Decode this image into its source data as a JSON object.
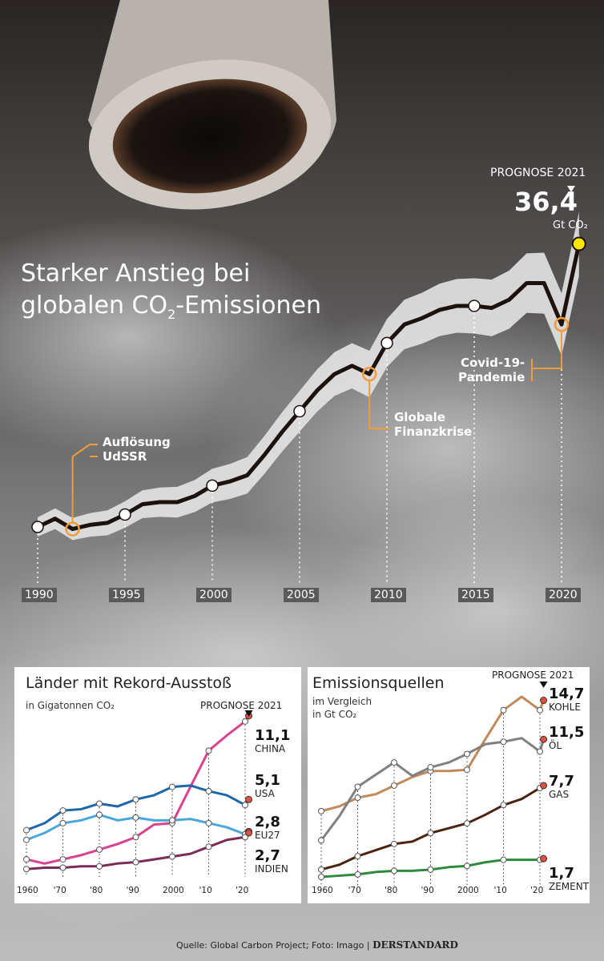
{
  "main": {
    "title_line1": "Starker Anstieg bei",
    "title_line2_pre": "globalen CO",
    "title_line2_sub": "2",
    "title_line2_post": "-Emissionen",
    "prognose_label": "PROGNOSE 2021",
    "prognose_value": "36,4",
    "prognose_unit": "Gt CO₂",
    "annotations": {
      "udssr": [
        "Auflösung",
        "UdSSR"
      ],
      "finanzkrise": [
        "Globale",
        "Finanzkrise"
      ],
      "covid": [
        "Covid-19-",
        "Pandemie"
      ]
    }
  },
  "chart_data": [
    {
      "type": "line",
      "title": "Starker Anstieg bei globalen CO2-Emissionen",
      "x_ticks": [
        "1990",
        "1995",
        "2000",
        "2005",
        "2010",
        "2015",
        "2020"
      ],
      "series": [
        {
          "x": [
            1990,
            1991,
            1992,
            1993,
            1994,
            1995,
            1996,
            1997,
            1998,
            1999,
            2000,
            2001,
            2002,
            2003,
            2004,
            2005,
            2006,
            2007,
            2008,
            2009,
            2010,
            2011,
            2012,
            2013,
            2014,
            2015,
            2016,
            2017,
            2018,
            2019,
            2020,
            2021
          ],
          "values": [
            22.7,
            23.1,
            22.6,
            22.8,
            22.9,
            23.3,
            23.8,
            23.9,
            23.9,
            24.2,
            24.7,
            24.9,
            25.2,
            26.2,
            27.3,
            28.3,
            29.3,
            30.1,
            30.5,
            30.1,
            31.6,
            32.5,
            32.8,
            33.2,
            33.4,
            33.4,
            33.3,
            33.7,
            34.5,
            34.5,
            32.5,
            36.4
          ]
        }
      ],
      "highlight_points": [
        1990,
        1995,
        2000,
        2005,
        2010,
        2015
      ],
      "annotated_points": [
        1992,
        2009,
        2020
      ],
      "prognose_point": 2021,
      "ylim": [
        21.5,
        37.5
      ],
      "colors": {
        "line": "#1c120d",
        "band": "#e4e4e4",
        "marker_highlight": "#ffffff",
        "marker_annot": "#f29b3a",
        "prognose": "#ffe600"
      }
    },
    {
      "type": "line",
      "title": "Länder mit Rekord-Ausstoß",
      "subtitle": "in Gigatonnen CO₂",
      "x_ticks": [
        "1960",
        "'70",
        "'80",
        "'90",
        "2000",
        "'10",
        "'20"
      ],
      "x": [
        1960,
        1965,
        1970,
        1975,
        1980,
        1985,
        1990,
        1995,
        2000,
        2005,
        2010,
        2015,
        2020,
        2021
      ],
      "series": [
        {
          "name": "CHINA",
          "color": "#d9428e",
          "values": [
            0.8,
            0.5,
            0.8,
            1.1,
            1.5,
            1.9,
            2.4,
            3.3,
            3.4,
            6.0,
            8.6,
            9.7,
            10.7,
            11.1
          ]
        },
        {
          "name": "USA",
          "color": "#1e67a8",
          "values": [
            2.9,
            3.4,
            4.3,
            4.4,
            4.8,
            4.6,
            5.1,
            5.4,
            6.0,
            6.1,
            5.7,
            5.4,
            4.7,
            5.1
          ]
        },
        {
          "name": "EU27",
          "color": "#4ba6da",
          "values": [
            2.2,
            2.7,
            3.4,
            3.6,
            4.0,
            3.6,
            3.8,
            3.6,
            3.6,
            3.7,
            3.4,
            3.1,
            2.6,
            2.8
          ]
        },
        {
          "name": "INDIEN",
          "color": "#7a2c57",
          "values": [
            0.1,
            0.2,
            0.2,
            0.3,
            0.3,
            0.5,
            0.6,
            0.8,
            1.0,
            1.2,
            1.7,
            2.2,
            2.4,
            2.7
          ]
        }
      ],
      "end_labels": [
        {
          "name": "CHINA",
          "value": "11,1"
        },
        {
          "name": "USA",
          "value": "5,1"
        },
        {
          "name": "EU27",
          "value": "2,8"
        },
        {
          "name": "INDIEN",
          "value": "2,7"
        }
      ],
      "prognose_label": "PROGNOSE 2021",
      "ylim": [
        0,
        12
      ]
    },
    {
      "type": "line",
      "title": "Emissionsquellen",
      "subtitle_line1": "im Vergleich",
      "subtitle_line2": "in Gt CO₂",
      "x_ticks": [
        "1960",
        "'70",
        "'80",
        "'90",
        "2000",
        "'10",
        "'20"
      ],
      "x": [
        1960,
        1965,
        1970,
        1975,
        1980,
        1985,
        1990,
        1995,
        2000,
        2005,
        2010,
        2015,
        2020,
        2021
      ],
      "series": [
        {
          "name": "KOHLE",
          "color": "#c08a5a",
          "values": [
            5.6,
            6.0,
            6.7,
            7.0,
            7.7,
            8.4,
            8.9,
            8.9,
            9.0,
            11.5,
            13.9,
            15.0,
            13.9,
            14.7
          ]
        },
        {
          "name": "ÖL",
          "color": "#808080",
          "values": [
            3.2,
            5.2,
            7.6,
            8.6,
            9.6,
            8.5,
            9.2,
            9.6,
            10.3,
            11.1,
            11.3,
            11.6,
            10.5,
            11.5
          ]
        },
        {
          "name": "GAS",
          "color": "#4a2410",
          "values": [
            0.8,
            1.2,
            1.9,
            2.4,
            2.9,
            3.1,
            3.8,
            4.2,
            4.6,
            5.3,
            6.1,
            6.6,
            7.5,
            7.7
          ]
        },
        {
          "name": "ZEMENT",
          "color": "#2e8b3c",
          "values": [
            0.2,
            0.3,
            0.4,
            0.6,
            0.7,
            0.7,
            0.8,
            1.0,
            1.1,
            1.4,
            1.6,
            1.6,
            1.6,
            1.7
          ]
        }
      ],
      "end_labels": [
        {
          "name": "KOHLE",
          "value": "14,7"
        },
        {
          "name": "ÖL",
          "value": "11,5"
        },
        {
          "name": "GAS",
          "value": "7,7"
        },
        {
          "name": "ZEMENT",
          "value": "1,7"
        }
      ],
      "prognose_label": "PROGNOSE 2021",
      "ylim": [
        0,
        16
      ]
    }
  ],
  "footer": {
    "source": "Quelle: Global Carbon Project; Foto: Imago | ",
    "brand": "DERSTANDARD"
  }
}
